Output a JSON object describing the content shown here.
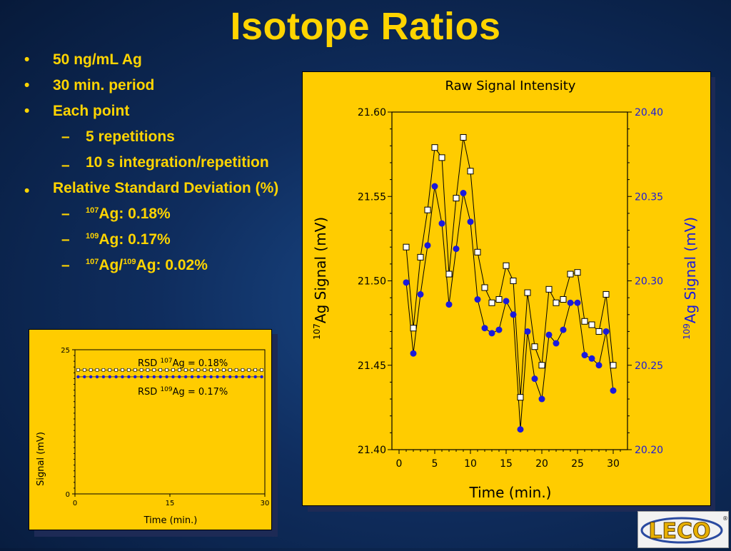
{
  "slide": {
    "title": "Isotope Ratios"
  },
  "bullets": [
    {
      "level": 1,
      "text": "50 ng/mL Ag"
    },
    {
      "level": 1,
      "text": "30 min. period"
    },
    {
      "level": 1,
      "text": "Each point"
    },
    {
      "level": 2,
      "text": "5 repetitions"
    },
    {
      "level": 2,
      "text": "10 s integration/repetition"
    },
    {
      "level": 1,
      "text": "Relative Standard Deviation (%)"
    },
    {
      "level": 2,
      "text": "Ag: 0.18%",
      "sup": "107"
    },
    {
      "level": 2,
      "text": "Ag: 0.17%",
      "sup": "109"
    },
    {
      "level": 2,
      "parts": [
        "107",
        "Ag/",
        "109",
        "Ag: 0.02%"
      ]
    }
  ],
  "logo": {
    "text": "LECO",
    "mark": "®"
  },
  "colors": {
    "title": "#ffd400",
    "panel": "#ffcc00",
    "series_107": "#ffffff",
    "series_109": "#1a1adc"
  },
  "chart_data": [
    {
      "type": "line",
      "title": "Raw Signal Intensity",
      "xlabel": "Time (min.)",
      "ylabel_left": {
        "sup": "107",
        "text": "Ag Signal (mV)"
      },
      "ylabel_right": {
        "sup": "109",
        "text": "Ag Signal (mV)"
      },
      "xlim": [
        -1,
        32
      ],
      "xticks": [
        "0",
        "5",
        "10",
        "15",
        "20",
        "25",
        "30"
      ],
      "ylim_left": [
        21.4,
        21.6
      ],
      "yticks_left": [
        "21.40",
        "21.45",
        "21.50",
        "21.55",
        "21.60"
      ],
      "ylim_right": [
        20.2,
        20.4
      ],
      "yticks_right": [
        "20.20",
        "20.25",
        "20.30",
        "20.35",
        "20.40"
      ],
      "x": [
        1,
        2,
        3,
        4,
        5,
        6,
        7,
        8,
        9,
        10,
        11,
        12,
        13,
        14,
        15,
        16,
        17,
        18,
        19,
        20,
        21,
        22,
        23,
        24,
        25,
        26,
        27,
        28,
        29,
        30
      ],
      "series": [
        {
          "axis": "left",
          "marker": "open-square",
          "values": [
            21.52,
            21.472,
            21.514,
            21.542,
            21.579,
            21.573,
            21.504,
            21.549,
            21.585,
            21.565,
            21.517,
            21.496,
            21.487,
            21.489,
            21.509,
            21.5,
            21.431,
            21.493,
            21.461,
            21.45,
            21.495,
            21.487,
            21.489,
            21.504,
            21.505,
            21.476,
            21.474,
            21.47,
            21.492,
            21.45
          ]
        },
        {
          "axis": "right",
          "marker": "filled-circle",
          "values": [
            20.299,
            20.257,
            20.292,
            20.321,
            20.356,
            20.334,
            20.286,
            20.319,
            20.352,
            20.335,
            20.289,
            20.272,
            20.269,
            20.271,
            20.288,
            20.28,
            20.212,
            20.27,
            20.242,
            20.23,
            20.268,
            20.263,
            20.271,
            20.287,
            20.287,
            20.256,
            20.254,
            20.25,
            20.27,
            20.235
          ]
        }
      ]
    },
    {
      "type": "line",
      "title": "",
      "xlabel": "Time (min.)",
      "ylabel": "Signal (mV)",
      "xlim": [
        0,
        30
      ],
      "xticks": [
        "0",
        "15",
        "30"
      ],
      "ylim": [
        0,
        25
      ],
      "yticks": [
        "0",
        "25"
      ],
      "annotations": [
        {
          "prefix": "RSD ",
          "sup": "107",
          "text": "Ag = 0.18%"
        },
        {
          "prefix": "RSD ",
          "sup": "109",
          "text": "Ag = 0.17%"
        }
      ],
      "series": [
        {
          "marker": "open-square",
          "level": 21.5
        },
        {
          "marker": "filled-circle",
          "level": 20.3
        }
      ]
    }
  ]
}
